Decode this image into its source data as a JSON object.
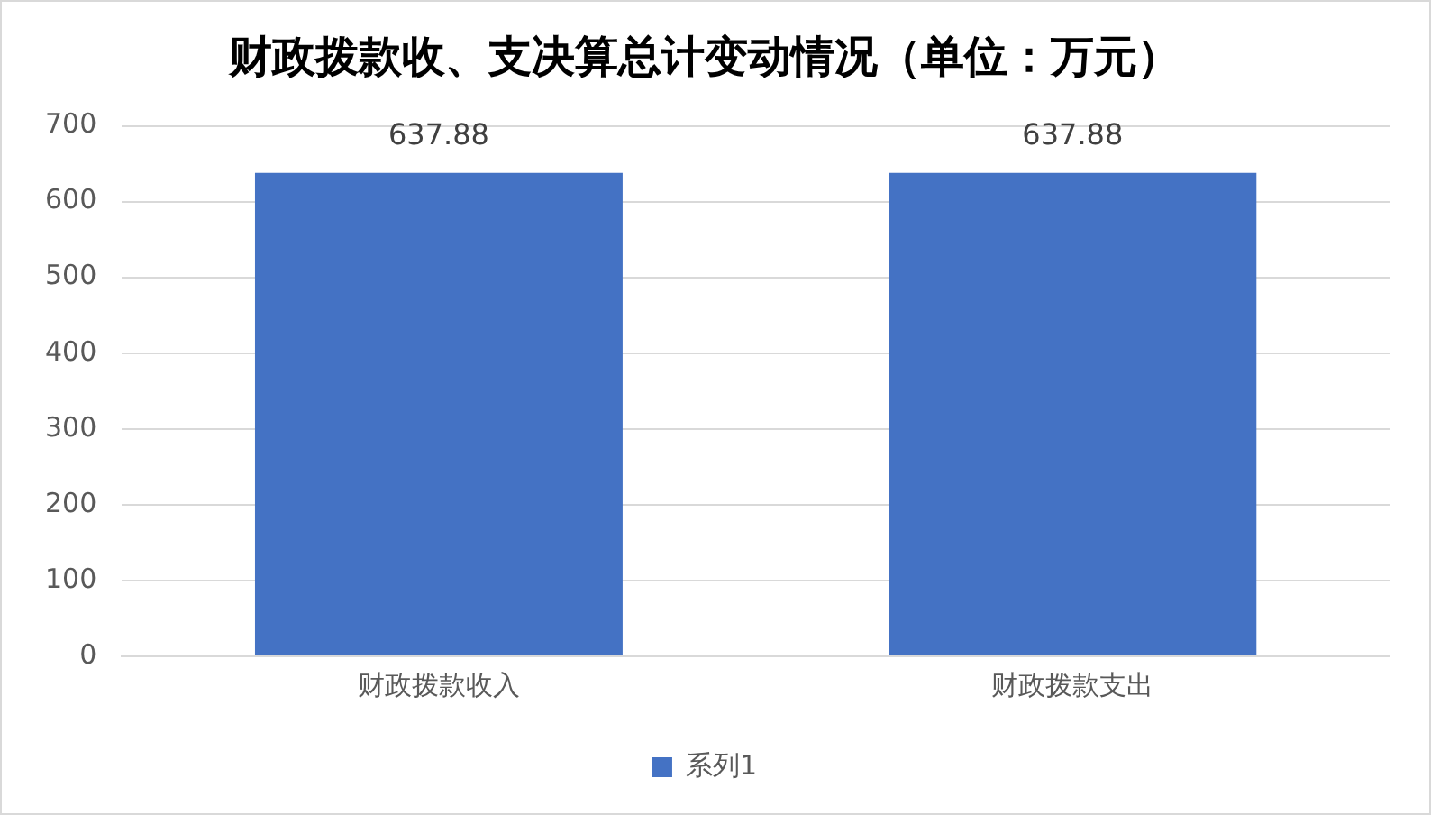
{
  "chart_data": {
    "type": "bar",
    "title": "财政拨款收、支决算总计变动情况（单位：万元）",
    "categories": [
      "财政拨款收入",
      "财政拨款支出"
    ],
    "series": [
      {
        "name": "系列1",
        "color": "#4472c4",
        "values": [
          637.88,
          637.88
        ]
      }
    ],
    "ylim": [
      0,
      700
    ],
    "yticks": [
      0,
      100,
      200,
      300,
      400,
      500,
      600,
      700
    ],
    "grid": "y",
    "legend": "bottom",
    "data_labels": true
  }
}
